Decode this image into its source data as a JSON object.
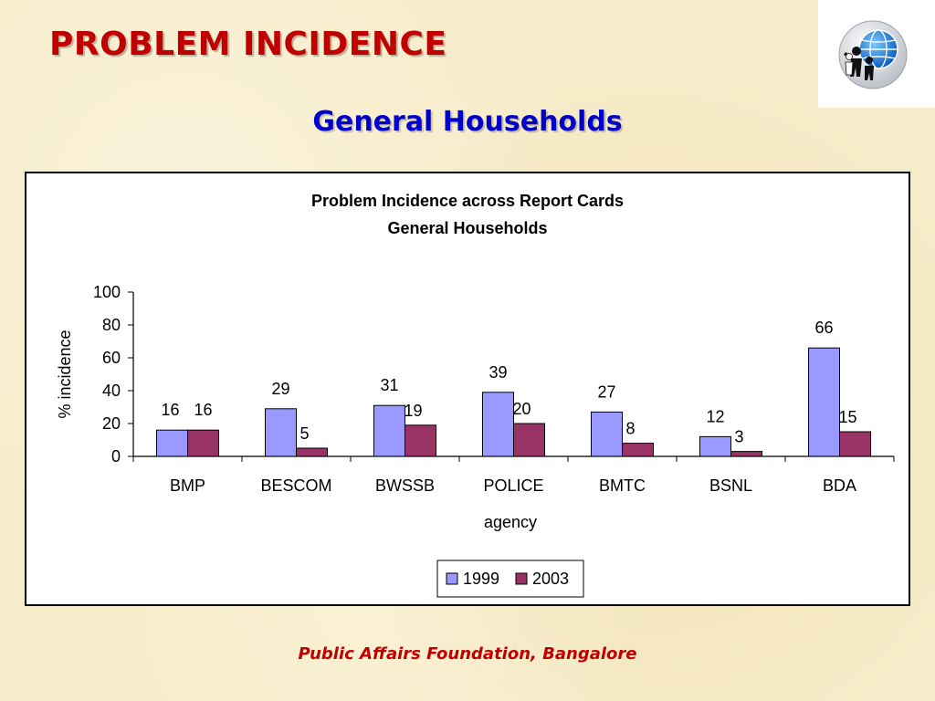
{
  "slide": {
    "title": "PROBLEM INCIDENCE",
    "subtitle": "General Households",
    "footer": "Public Affairs Foundation, Bangalore",
    "logo_icon": "globe-people-icon"
  },
  "chart_data": {
    "type": "bar",
    "title": "Problem Incidence across Report Cards",
    "subtitle": "General Households",
    "xlabel": "agency",
    "ylabel": "% incidence",
    "ylim": [
      0,
      100
    ],
    "yticks": [
      0,
      20,
      40,
      60,
      80,
      100
    ],
    "categories": [
      "BMP",
      "BESCOM",
      "BWSSB",
      "POLICE",
      "BMTC",
      "BSNL",
      "BDA"
    ],
    "series": [
      {
        "name": "1999",
        "color": "#9999ff",
        "values": [
          16,
          29,
          31,
          39,
          27,
          12,
          66
        ]
      },
      {
        "name": "2003",
        "color": "#993366",
        "values": [
          16,
          5,
          19,
          20,
          8,
          3,
          15
        ]
      }
    ],
    "grid": false,
    "legend_position": "bottom"
  }
}
